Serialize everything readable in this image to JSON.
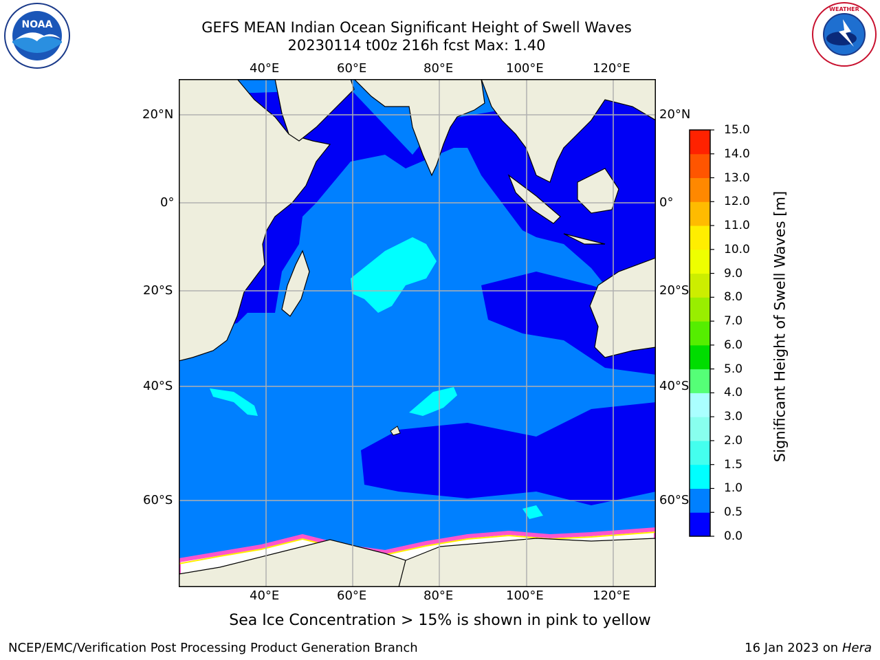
{
  "title_line1": "GEFS MEAN Indian Ocean Significant Height of Swell Waves",
  "title_line2": "20230114 t00z 216h fcst   Max: 1.40",
  "logos": {
    "left": "noaa-logo",
    "right": "national-weather-service-logo"
  },
  "map": {
    "lon_labels": [
      "40°E",
      "60°E",
      "80°E",
      "100°E",
      "120°E"
    ],
    "lat_labels": [
      "20°N",
      "0°",
      "20°S",
      "40°S",
      "60°S"
    ],
    "lon_range": [
      20,
      130
    ],
    "lat_range": [
      -73,
      28
    ],
    "colors": {
      "ocean_deep": "#0000f5",
      "ocean_mid": "#0080ff",
      "ocean_light": "#00ffff",
      "land": "#eeeedd",
      "ice": "#ffffff",
      "ice_edge": "#ff55cc"
    }
  },
  "colorbar": {
    "title": "Significant Height of Swell Waves [m]",
    "tick_labels": [
      "0.0",
      "0.5",
      "1.0",
      "1.5",
      "2.0",
      "3.0",
      "4.0",
      "5.0",
      "6.0",
      "7.0",
      "8.0",
      "9.0",
      "10.0",
      "11.0",
      "12.0",
      "13.0",
      "14.0",
      "15.0"
    ],
    "colors": [
      "#0000ff",
      "#0080ff",
      "#00ffff",
      "#44ffee",
      "#88ffee",
      "#aaffff",
      "#55ff77",
      "#00dd00",
      "#55ee00",
      "#99ee00",
      "#ccee00",
      "#eeff00",
      "#ffee00",
      "#ffbb00",
      "#ff8800",
      "#ff5500",
      "#ff2200",
      "#ff0000"
    ]
  },
  "caption": "Sea Ice Concentration > 15% is shown in pink to yellow",
  "footer_left": "NCEP/EMC/Verification Post Processing Product Generation Branch",
  "footer_right_prefix": "16 Jan 2023 on ",
  "footer_right_machine": "Hera"
}
